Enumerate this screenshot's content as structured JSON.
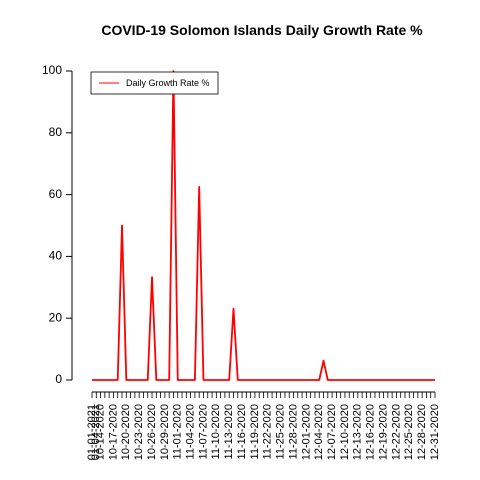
{
  "chart_data": {
    "type": "line",
    "title": "COVID-19 Solomon Islands Daily Growth Rate %",
    "xlabel": "",
    "ylabel": "",
    "ylim": [
      0,
      100
    ],
    "yticks": [
      0,
      20,
      40,
      60,
      80,
      100
    ],
    "grid": false,
    "legend_position": "top-left",
    "categories": [
      "01-01-2021",
      "01-04-2021",
      "10-14-2020",
      "10-15-2020",
      "10-16-2020",
      "10-17-2020",
      "10-18-2020",
      "10-19-2020",
      "10-20-2020",
      "10-21-2020",
      "10-22-2020",
      "10-23-2020",
      "10-24-2020",
      "10-25-2020",
      "10-26-2020",
      "10-27-2020",
      "10-28-2020",
      "10-29-2020",
      "10-30-2020",
      "10-31-2020",
      "11-01-2020",
      "11-02-2020",
      "11-03-2020",
      "11-04-2020",
      "11-05-2020",
      "11-06-2020",
      "11-07-2020",
      "11-08-2020",
      "11-09-2020",
      "11-10-2020",
      "11-11-2020",
      "11-12-2020",
      "11-13-2020",
      "11-14-2020",
      "11-15-2020",
      "11-16-2020",
      "11-17-2020",
      "11-18-2020",
      "11-19-2020",
      "11-20-2020",
      "11-21-2020",
      "11-22-2020",
      "11-23-2020",
      "11-24-2020",
      "11-25-2020",
      "11-26-2020",
      "11-27-2020",
      "11-28-2020",
      "11-29-2020",
      "11-30-2020",
      "12-01-2020",
      "12-02-2020",
      "12-03-2020",
      "12-04-2020",
      "12-05-2020",
      "12-06-2020",
      "12-07-2020",
      "12-08-2020",
      "12-09-2020",
      "12-10-2020",
      "12-11-2020",
      "12-12-2020",
      "12-13-2020",
      "12-14-2020",
      "12-15-2020",
      "12-16-2020",
      "12-17-2020",
      "12-18-2020",
      "12-19-2020",
      "12-20-2020",
      "12-21-2020",
      "12-22-2020",
      "12-23-2020",
      "12-24-2020",
      "12-25-2020",
      "12-26-2020",
      "12-27-2020",
      "12-28-2020",
      "12-29-2020",
      "12-30-2020",
      "12-31-2020"
    ],
    "x_tick_labels_shown": [
      "01-01-2021",
      "01-04-2021",
      "10-14-2020",
      "10-17-2020",
      "10-20-2020",
      "10-23-2020",
      "10-26-2020",
      "10-29-2020",
      "11-01-2020",
      "11-04-2020",
      "11-07-2020",
      "11-10-2020",
      "11-13-2020",
      "11-16-2020",
      "11-19-2020",
      "11-22-2020",
      "11-25-2020",
      "11-28-2020",
      "12-01-2020",
      "12-04-2020",
      "12-07-2020",
      "12-10-2020",
      "12-13-2020",
      "12-16-2020",
      "12-19-2020",
      "12-22-2020",
      "12-25-2020",
      "12-28-2020",
      "12-31-2020"
    ],
    "series": [
      {
        "name": "Daily Growth Rate %",
        "color": "#ff0000",
        "values": [
          0,
          0,
          0,
          0,
          0,
          0,
          0,
          50,
          0,
          0,
          0,
          0,
          0,
          0,
          33.3,
          0,
          0,
          0,
          0,
          100,
          0,
          0,
          0,
          0,
          0,
          62.5,
          0,
          0,
          0,
          0,
          0,
          0,
          0,
          23.1,
          0,
          0,
          0,
          0,
          0,
          0,
          0,
          0,
          0,
          0,
          0,
          0,
          0,
          0,
          0,
          0,
          0,
          0,
          0,
          0,
          6.25,
          0,
          0,
          0,
          0,
          0,
          0,
          0,
          0,
          0,
          0,
          0,
          0,
          0,
          0,
          0,
          0,
          0,
          0,
          0,
          0,
          0,
          0,
          0,
          0,
          0,
          0
        ]
      }
    ]
  }
}
